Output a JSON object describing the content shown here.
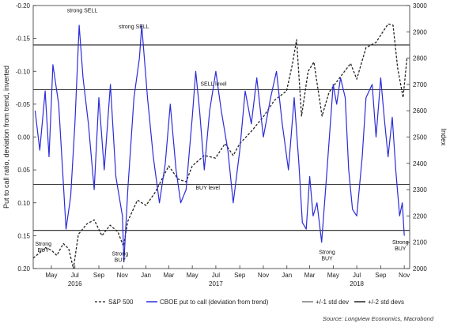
{
  "chart_data": {
    "type": "line",
    "title": "",
    "left_axis": {
      "label": "Put to call ratio, deviation from trend, inverted",
      "range": [
        -0.2,
        0.2
      ],
      "inverted": true,
      "ticks": [
        "-0.20",
        "-0.15",
        "-0.10",
        "-0.05",
        "0.00",
        "0.05",
        "0.10",
        "0.15",
        "0.20"
      ],
      "tick_values": [
        -0.2,
        -0.15,
        -0.1,
        -0.05,
        0.0,
        0.05,
        0.1,
        0.15,
        0.2
      ]
    },
    "right_axis": {
      "label": "Index",
      "range": [
        2000,
        3000
      ],
      "ticks": [
        "3000",
        "2900",
        "2800",
        "2700",
        "2600",
        "2500",
        "2400",
        "2300",
        "2200",
        "2100",
        "2000"
      ],
      "tick_values": [
        3000,
        2900,
        2800,
        2700,
        2600,
        2500,
        2400,
        2300,
        2200,
        2100,
        2000
      ]
    },
    "x_axis": {
      "range": [
        "2016-03-15",
        "2018-11-15"
      ],
      "month_ticks": [
        {
          "label": "May",
          "date": "2016-05-01"
        },
        {
          "label": "Jul",
          "date": "2016-07-01"
        },
        {
          "label": "Sep",
          "date": "2016-09-01"
        },
        {
          "label": "Nov",
          "date": "2016-11-01"
        },
        {
          "label": "Jan",
          "date": "2017-01-01"
        },
        {
          "label": "Mar",
          "date": "2017-03-01"
        },
        {
          "label": "May",
          "date": "2017-05-01"
        },
        {
          "label": "Jul",
          "date": "2017-07-01"
        },
        {
          "label": "Sep",
          "date": "2017-09-01"
        },
        {
          "label": "Nov",
          "date": "2017-11-01"
        },
        {
          "label": "Jan",
          "date": "2018-01-01"
        },
        {
          "label": "Mar",
          "date": "2018-03-01"
        },
        {
          "label": "May",
          "date": "2018-05-01"
        },
        {
          "label": "Jul",
          "date": "2018-07-01"
        },
        {
          "label": "Sep",
          "date": "2018-09-01"
        },
        {
          "label": "Nov",
          "date": "2018-11-01"
        }
      ],
      "year_labels": [
        {
          "label": "2016",
          "date": "2016-07-01"
        },
        {
          "label": "2017",
          "date": "2017-07-01"
        },
        {
          "label": "2018",
          "date": "2018-07-01"
        }
      ]
    },
    "reference_lines": [
      {
        "value": -0.14,
        "style": "+/-2 std devs"
      },
      {
        "value": -0.072,
        "style": "+/-1 std dev"
      },
      {
        "value": 0.072,
        "style": "+/-1 std dev"
      },
      {
        "value": 0.142,
        "style": "+/-2 std devs"
      }
    ],
    "series": [
      {
        "name": "S&P 500",
        "axis": "right",
        "color": "#222222",
        "dash": "dashed",
        "points": [
          [
            "2016-03-15",
            2040
          ],
          [
            "2016-04-01",
            2060
          ],
          [
            "2016-04-15",
            2080
          ],
          [
            "2016-05-01",
            2070
          ],
          [
            "2016-05-15",
            2050
          ],
          [
            "2016-06-01",
            2095
          ],
          [
            "2016-06-15",
            2075
          ],
          [
            "2016-06-27",
            2000
          ],
          [
            "2016-07-10",
            2130
          ],
          [
            "2016-08-01",
            2170
          ],
          [
            "2016-08-20",
            2185
          ],
          [
            "2016-09-09",
            2125
          ],
          [
            "2016-09-30",
            2165
          ],
          [
            "2016-10-20",
            2140
          ],
          [
            "2016-11-04",
            2085
          ],
          [
            "2016-11-15",
            2180
          ],
          [
            "2016-12-10",
            2260
          ],
          [
            "2017-01-01",
            2240
          ],
          [
            "2017-01-25",
            2290
          ],
          [
            "2017-02-15",
            2350
          ],
          [
            "2017-03-01",
            2390
          ],
          [
            "2017-03-25",
            2340
          ],
          [
            "2017-04-15",
            2330
          ],
          [
            "2017-05-01",
            2390
          ],
          [
            "2017-06-01",
            2430
          ],
          [
            "2017-06-30",
            2420
          ],
          [
            "2017-07-25",
            2475
          ],
          [
            "2017-08-15",
            2430
          ],
          [
            "2017-09-01",
            2475
          ],
          [
            "2017-09-30",
            2520
          ],
          [
            "2017-10-31",
            2575
          ],
          [
            "2017-11-30",
            2640
          ],
          [
            "2017-12-31",
            2675
          ],
          [
            "2018-01-15",
            2775
          ],
          [
            "2018-01-26",
            2870
          ],
          [
            "2018-02-08",
            2580
          ],
          [
            "2018-02-25",
            2750
          ],
          [
            "2018-03-12",
            2785
          ],
          [
            "2018-04-02",
            2580
          ],
          [
            "2018-04-20",
            2670
          ],
          [
            "2018-05-15",
            2720
          ],
          [
            "2018-06-15",
            2780
          ],
          [
            "2018-07-01",
            2720
          ],
          [
            "2018-07-25",
            2840
          ],
          [
            "2018-08-20",
            2860
          ],
          [
            "2018-09-20",
            2930
          ],
          [
            "2018-10-03",
            2925
          ],
          [
            "2018-10-15",
            2760
          ],
          [
            "2018-10-29",
            2650
          ],
          [
            "2018-11-08",
            2800
          ]
        ]
      },
      {
        "name": "CBOE put to call (deviation from trend)",
        "axis": "left",
        "color": "#2b2bd9",
        "dash": "solid",
        "points": [
          [
            "2016-03-20",
            -0.04
          ],
          [
            "2016-04-01",
            0.02
          ],
          [
            "2016-04-15",
            -0.07
          ],
          [
            "2016-04-25",
            0.03
          ],
          [
            "2016-05-05",
            -0.11
          ],
          [
            "2016-05-20",
            -0.05
          ],
          [
            "2016-06-01",
            0.07
          ],
          [
            "2016-06-08",
            0.14
          ],
          [
            "2016-06-20",
            0.09
          ],
          [
            "2016-07-01",
            -0.02
          ],
          [
            "2016-07-12",
            -0.17
          ],
          [
            "2016-07-22",
            -0.09
          ],
          [
            "2016-08-05",
            -0.02
          ],
          [
            "2016-08-20",
            0.08
          ],
          [
            "2016-09-01",
            -0.06
          ],
          [
            "2016-09-15",
            0.05
          ],
          [
            "2016-10-01",
            -0.08
          ],
          [
            "2016-10-15",
            0.06
          ],
          [
            "2016-11-01",
            0.12
          ],
          [
            "2016-11-05",
            0.19
          ],
          [
            "2016-11-15",
            0.08
          ],
          [
            "2016-12-01",
            -0.06
          ],
          [
            "2016-12-15",
            -0.12
          ],
          [
            "2016-12-21",
            -0.17
          ],
          [
            "2017-01-05",
            -0.06
          ],
          [
            "2017-01-20",
            0.03
          ],
          [
            "2017-02-05",
            0.1
          ],
          [
            "2017-02-20",
            0.04
          ],
          [
            "2017-03-05",
            -0.05
          ],
          [
            "2017-03-20",
            0.05
          ],
          [
            "2017-04-01",
            0.1
          ],
          [
            "2017-04-15",
            0.08
          ],
          [
            "2017-05-01",
            -0.03
          ],
          [
            "2017-05-10",
            -0.1
          ],
          [
            "2017-05-20",
            -0.04
          ],
          [
            "2017-06-01",
            0.05
          ],
          [
            "2017-06-15",
            -0.04
          ],
          [
            "2017-07-01",
            -0.1
          ],
          [
            "2017-07-15",
            -0.04
          ],
          [
            "2017-08-01",
            0.02
          ],
          [
            "2017-08-15",
            0.1
          ],
          [
            "2017-09-01",
            0.02
          ],
          [
            "2017-09-15",
            -0.07
          ],
          [
            "2017-10-01",
            -0.02
          ],
          [
            "2017-10-15",
            -0.09
          ],
          [
            "2017-11-01",
            0.0
          ],
          [
            "2017-11-20",
            -0.06
          ],
          [
            "2017-12-05",
            -0.1
          ],
          [
            "2017-12-20",
            -0.02
          ],
          [
            "2018-01-05",
            0.05
          ],
          [
            "2018-01-20",
            -0.06
          ],
          [
            "2018-02-01",
            0.04
          ],
          [
            "2018-02-10",
            0.13
          ],
          [
            "2018-02-20",
            0.14
          ],
          [
            "2018-03-01",
            0.06
          ],
          [
            "2018-03-10",
            0.12
          ],
          [
            "2018-03-20",
            0.1
          ],
          [
            "2018-04-01",
            0.16
          ],
          [
            "2018-04-15",
            0.05
          ],
          [
            "2018-05-01",
            -0.08
          ],
          [
            "2018-05-10",
            -0.05
          ],
          [
            "2018-05-20",
            -0.09
          ],
          [
            "2018-06-01",
            -0.06
          ],
          [
            "2018-06-10",
            0.05
          ],
          [
            "2018-06-20",
            0.11
          ],
          [
            "2018-07-01",
            0.12
          ],
          [
            "2018-07-15",
            0.03
          ],
          [
            "2018-07-25",
            -0.06
          ],
          [
            "2018-08-10",
            -0.08
          ],
          [
            "2018-08-20",
            0.0
          ],
          [
            "2018-09-01",
            -0.09
          ],
          [
            "2018-09-10",
            -0.03
          ],
          [
            "2018-09-20",
            0.03
          ],
          [
            "2018-10-01",
            -0.03
          ],
          [
            "2018-10-10",
            0.05
          ],
          [
            "2018-10-20",
            0.12
          ],
          [
            "2018-10-27",
            0.1
          ],
          [
            "2018-11-01",
            0.15
          ]
        ]
      }
    ],
    "annotations": [
      {
        "text": "strong SELL",
        "date": "2016-07-20",
        "value": -0.19
      },
      {
        "text": "strong SELL",
        "date": "2016-12-01",
        "value": -0.165
      },
      {
        "text": "SELL level",
        "date": "2017-06-25",
        "value": -0.078
      },
      {
        "text": "BUY level",
        "date": "2017-06-10",
        "value": 0.08
      },
      {
        "text": "Strong\nBUY",
        "date": "2016-04-10",
        "value": 0.165
      },
      {
        "text": "Strong\nBUY",
        "date": "2016-10-26",
        "value": 0.18
      },
      {
        "text": "Strong\nBUY",
        "date": "2018-04-15",
        "value": 0.178
      },
      {
        "text": "Strong\nBUY",
        "date": "2018-10-22",
        "value": 0.163
      }
    ],
    "grid": false,
    "legend": {
      "placement": "bottom",
      "items": [
        {
          "label": "S&P 500",
          "style": "dashed",
          "color": "#222222"
        },
        {
          "label": "CBOE put to call (deviation from trend)",
          "style": "solid",
          "color": "#2b2bd9"
        },
        {
          "label": "+/-1 std dev",
          "style": "solid-thin",
          "color": "#222222"
        },
        {
          "label": "+/-2 std devs",
          "style": "solid",
          "color": "#222222"
        }
      ]
    },
    "source": "Source: Longview Economics, Macrobond"
  }
}
